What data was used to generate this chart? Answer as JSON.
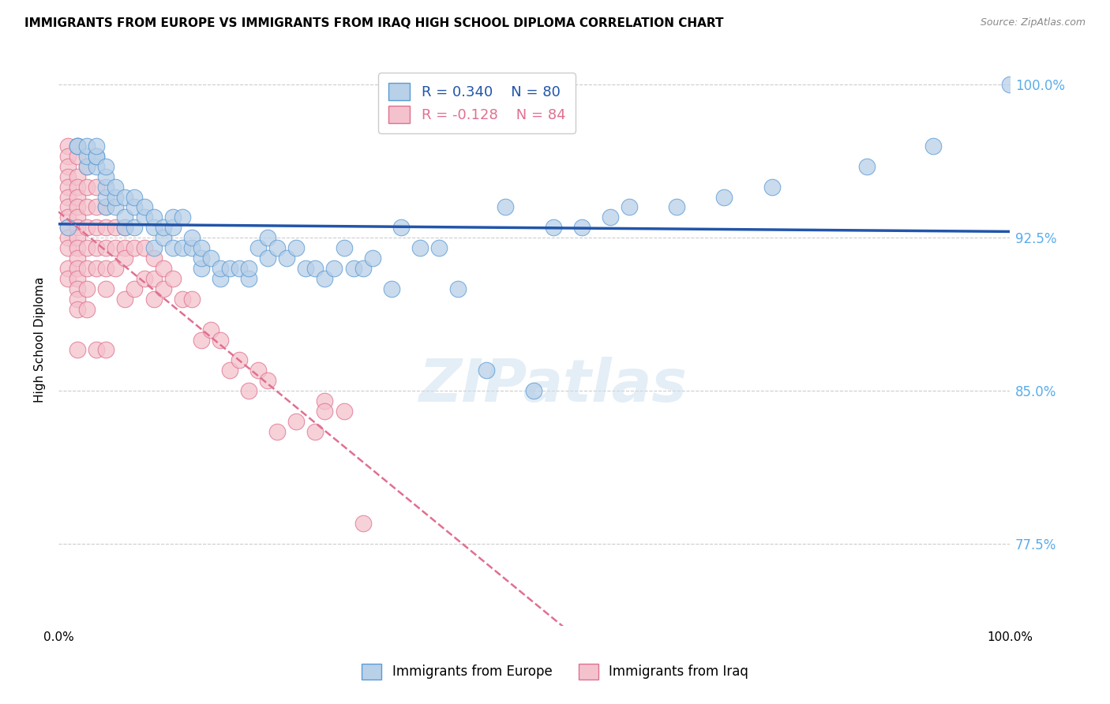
{
  "title": "IMMIGRANTS FROM EUROPE VS IMMIGRANTS FROM IRAQ HIGH SCHOOL DIPLOMA CORRELATION CHART",
  "source": "Source: ZipAtlas.com",
  "ylabel": "High School Diploma",
  "yticks": [
    0.775,
    0.85,
    0.925,
    1.0
  ],
  "ytick_labels": [
    "77.5%",
    "85.0%",
    "92.5%",
    "100.0%"
  ],
  "xlim": [
    0.0,
    1.0
  ],
  "ylim": [
    0.735,
    1.015
  ],
  "r_europe": 0.34,
  "n_europe": 80,
  "r_iraq": -0.128,
  "n_iraq": 84,
  "color_europe_fill": "#b8d0e8",
  "color_europe_edge": "#5b9bd5",
  "color_iraq_fill": "#f4c2cc",
  "color_iraq_edge": "#e07090",
  "color_europe_line": "#2255aa",
  "color_iraq_line": "#e07090",
  "color_yticks": "#5badea",
  "watermark": "ZIPatlas",
  "europe_x": [
    0.01,
    0.02,
    0.02,
    0.03,
    0.03,
    0.03,
    0.04,
    0.04,
    0.04,
    0.04,
    0.05,
    0.05,
    0.05,
    0.05,
    0.05,
    0.06,
    0.06,
    0.06,
    0.07,
    0.07,
    0.07,
    0.08,
    0.08,
    0.08,
    0.09,
    0.09,
    0.1,
    0.1,
    0.1,
    0.11,
    0.11,
    0.12,
    0.12,
    0.12,
    0.13,
    0.13,
    0.14,
    0.14,
    0.15,
    0.15,
    0.15,
    0.16,
    0.17,
    0.17,
    0.18,
    0.19,
    0.2,
    0.2,
    0.21,
    0.22,
    0.22,
    0.23,
    0.24,
    0.25,
    0.26,
    0.27,
    0.28,
    0.29,
    0.3,
    0.31,
    0.32,
    0.33,
    0.35,
    0.36,
    0.38,
    0.4,
    0.42,
    0.45,
    0.47,
    0.5,
    0.52,
    0.55,
    0.58,
    0.6,
    0.65,
    0.7,
    0.75,
    0.85,
    0.92,
    1.0
  ],
  "europe_y": [
    0.93,
    0.97,
    0.97,
    0.96,
    0.965,
    0.97,
    0.96,
    0.965,
    0.965,
    0.97,
    0.94,
    0.945,
    0.95,
    0.955,
    0.96,
    0.94,
    0.945,
    0.95,
    0.93,
    0.935,
    0.945,
    0.93,
    0.94,
    0.945,
    0.935,
    0.94,
    0.92,
    0.93,
    0.935,
    0.925,
    0.93,
    0.92,
    0.93,
    0.935,
    0.92,
    0.935,
    0.92,
    0.925,
    0.91,
    0.915,
    0.92,
    0.915,
    0.905,
    0.91,
    0.91,
    0.91,
    0.905,
    0.91,
    0.92,
    0.915,
    0.925,
    0.92,
    0.915,
    0.92,
    0.91,
    0.91,
    0.905,
    0.91,
    0.92,
    0.91,
    0.91,
    0.915,
    0.9,
    0.93,
    0.92,
    0.92,
    0.9,
    0.86,
    0.94,
    0.85,
    0.93,
    0.93,
    0.935,
    0.94,
    0.94,
    0.945,
    0.95,
    0.96,
    0.97,
    1.0
  ],
  "iraq_x": [
    0.01,
    0.01,
    0.01,
    0.01,
    0.01,
    0.01,
    0.01,
    0.01,
    0.01,
    0.01,
    0.01,
    0.01,
    0.01,
    0.02,
    0.02,
    0.02,
    0.02,
    0.02,
    0.02,
    0.02,
    0.02,
    0.02,
    0.02,
    0.02,
    0.02,
    0.02,
    0.02,
    0.02,
    0.02,
    0.02,
    0.03,
    0.03,
    0.03,
    0.03,
    0.03,
    0.03,
    0.03,
    0.03,
    0.04,
    0.04,
    0.04,
    0.04,
    0.04,
    0.04,
    0.05,
    0.05,
    0.05,
    0.05,
    0.05,
    0.05,
    0.06,
    0.06,
    0.06,
    0.07,
    0.07,
    0.07,
    0.07,
    0.08,
    0.08,
    0.09,
    0.09,
    0.1,
    0.1,
    0.1,
    0.11,
    0.11,
    0.12,
    0.13,
    0.14,
    0.15,
    0.16,
    0.17,
    0.18,
    0.19,
    0.2,
    0.21,
    0.22,
    0.23,
    0.25,
    0.27,
    0.28,
    0.28,
    0.3,
    0.32
  ],
  "iraq_y": [
    0.97,
    0.965,
    0.96,
    0.955,
    0.95,
    0.945,
    0.94,
    0.935,
    0.93,
    0.925,
    0.92,
    0.91,
    0.905,
    0.97,
    0.965,
    0.955,
    0.95,
    0.945,
    0.94,
    0.935,
    0.93,
    0.925,
    0.92,
    0.915,
    0.91,
    0.905,
    0.9,
    0.895,
    0.89,
    0.87,
    0.96,
    0.95,
    0.94,
    0.93,
    0.92,
    0.91,
    0.9,
    0.89,
    0.95,
    0.94,
    0.93,
    0.92,
    0.91,
    0.87,
    0.94,
    0.93,
    0.92,
    0.91,
    0.9,
    0.87,
    0.93,
    0.92,
    0.91,
    0.93,
    0.92,
    0.915,
    0.895,
    0.92,
    0.9,
    0.92,
    0.905,
    0.915,
    0.905,
    0.895,
    0.91,
    0.9,
    0.905,
    0.895,
    0.895,
    0.875,
    0.88,
    0.875,
    0.86,
    0.865,
    0.85,
    0.86,
    0.855,
    0.83,
    0.835,
    0.83,
    0.845,
    0.84,
    0.84,
    0.785
  ]
}
